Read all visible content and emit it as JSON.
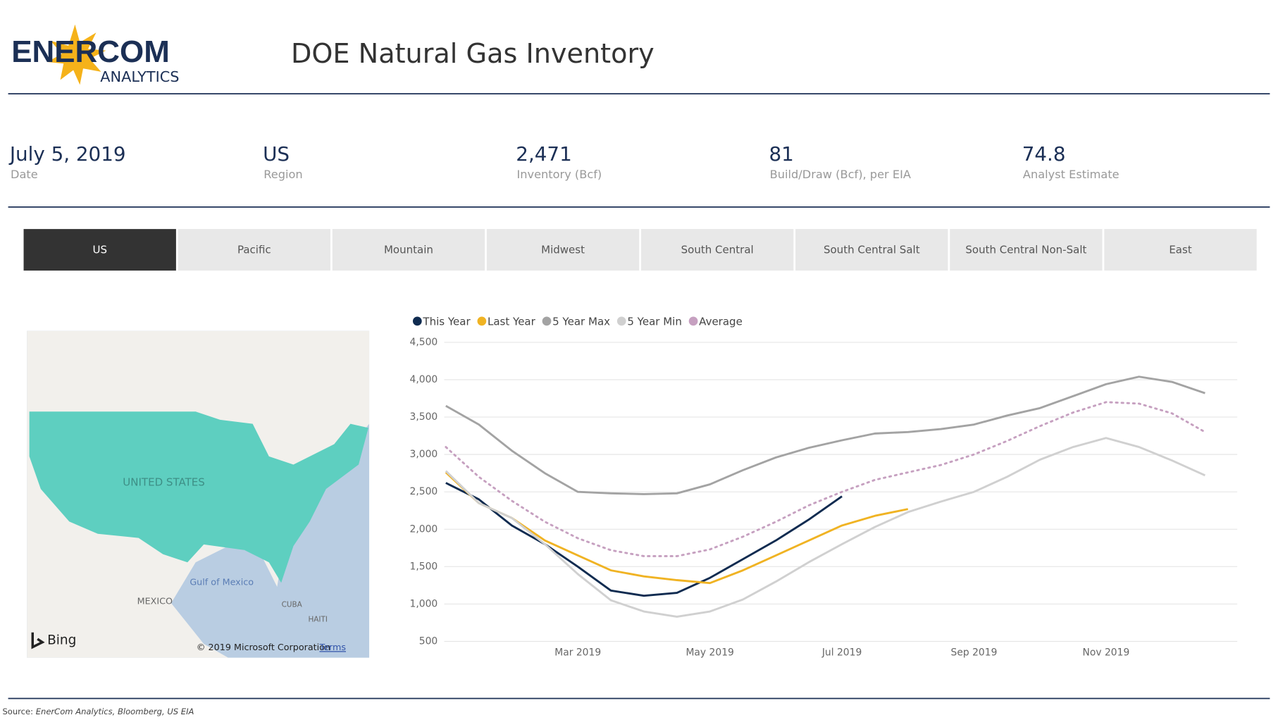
{
  "header": {
    "logo_main": "ENERCOM",
    "logo_sub": "ANALYTICS",
    "title": "DOE Natural Gas Inventory"
  },
  "stats": [
    {
      "value": "July 5, 2019",
      "label": "Date"
    },
    {
      "value": "US",
      "label": "Region"
    },
    {
      "value": "2,471",
      "label": "Inventory (Bcf)"
    },
    {
      "value": "81",
      "label": "Build/Draw (Bcf), per EIA"
    },
    {
      "value": "74.8",
      "label": "Analyst Estimate"
    }
  ],
  "tabs": [
    "US",
    "Pacific",
    "Mountain",
    "Midwest",
    "South Central",
    "South Central Salt",
    "South Central Non-Salt",
    "East"
  ],
  "map": {
    "country": "UNITED STATES",
    "gulf": "Gulf of Mexico",
    "mexico": "MEXICO",
    "cuba": "CUBA",
    "haiti": "HAITI",
    "brand": "Bing",
    "copyright": "© 2019 Microsoft Corporation",
    "terms": "Terms"
  },
  "chart_data": {
    "type": "line",
    "categories": [
      null,
      null,
      null,
      null,
      "Mar 2019",
      null,
      null,
      null,
      "May 2019",
      null,
      null,
      null,
      "Jul 2019",
      null,
      null,
      null,
      "Sep 2019",
      null,
      null,
      null,
      "Nov 2019",
      null,
      null,
      null
    ],
    "ylim": [
      500,
      4500
    ],
    "yticks": [
      500,
      {
        "value": 1000,
        "label": "1,000"
      },
      {
        "value": 1500,
        "label": "1,500"
      },
      {
        "value": 2000,
        "label": "2,000"
      },
      {
        "value": 2500,
        "label": "2,500"
      },
      {
        "value": 3000,
        "label": "3,000"
      },
      {
        "value": 3500,
        "label": "3,500"
      },
      {
        "value": 4000,
        "label": "4,000"
      },
      {
        "value": 4500,
        "label": "4,500"
      }
    ],
    "grid": true,
    "series": [
      {
        "name": "This Year",
        "color": "#0f2b50",
        "values": [
          2620,
          2400,
          2050,
          1800,
          1500,
          1180,
          1110,
          1150,
          1350,
          1600,
          1850,
          2130,
          2440,
          null,
          null,
          null,
          null,
          null,
          null,
          null,
          null,
          null,
          null,
          null
        ]
      },
      {
        "name": "Last Year",
        "color": "#f0b323",
        "values": [
          2760,
          2350,
          2150,
          1850,
          1650,
          1450,
          1370,
          1320,
          1280,
          1450,
          1650,
          1850,
          2050,
          2180,
          2270,
          null,
          null,
          null,
          null,
          null,
          null,
          null,
          null,
          null
        ]
      },
      {
        "name": "5 Year Max",
        "color": "#a3a3a3",
        "values": [
          3650,
          3400,
          3050,
          2750,
          2500,
          2480,
          2470,
          2480,
          2600,
          2790,
          2960,
          3090,
          3190,
          3280,
          3300,
          3340,
          3400,
          3520,
          3620,
          3780,
          3940,
          4040,
          3970,
          3820
        ]
      },
      {
        "name": "5 Year Min",
        "color": "#d0d0d0",
        "values": [
          2780,
          2350,
          2150,
          1800,
          1400,
          1050,
          900,
          830,
          900,
          1060,
          1300,
          1560,
          1800,
          2030,
          2230,
          2370,
          2500,
          2700,
          2930,
          3100,
          3220,
          3100,
          2920,
          2720
        ]
      },
      {
        "name": "Average",
        "color": "#c6a0c0",
        "dashed": true,
        "values": [
          3100,
          2700,
          2380,
          2100,
          1880,
          1720,
          1640,
          1640,
          1730,
          1900,
          2100,
          2320,
          2500,
          2660,
          2760,
          2860,
          3000,
          3180,
          3380,
          3560,
          3700,
          3680,
          3550,
          3300
        ]
      }
    ]
  },
  "source": {
    "prefix": "Source:",
    "text": "EnerCom Analytics, Bloomberg, US EIA"
  }
}
